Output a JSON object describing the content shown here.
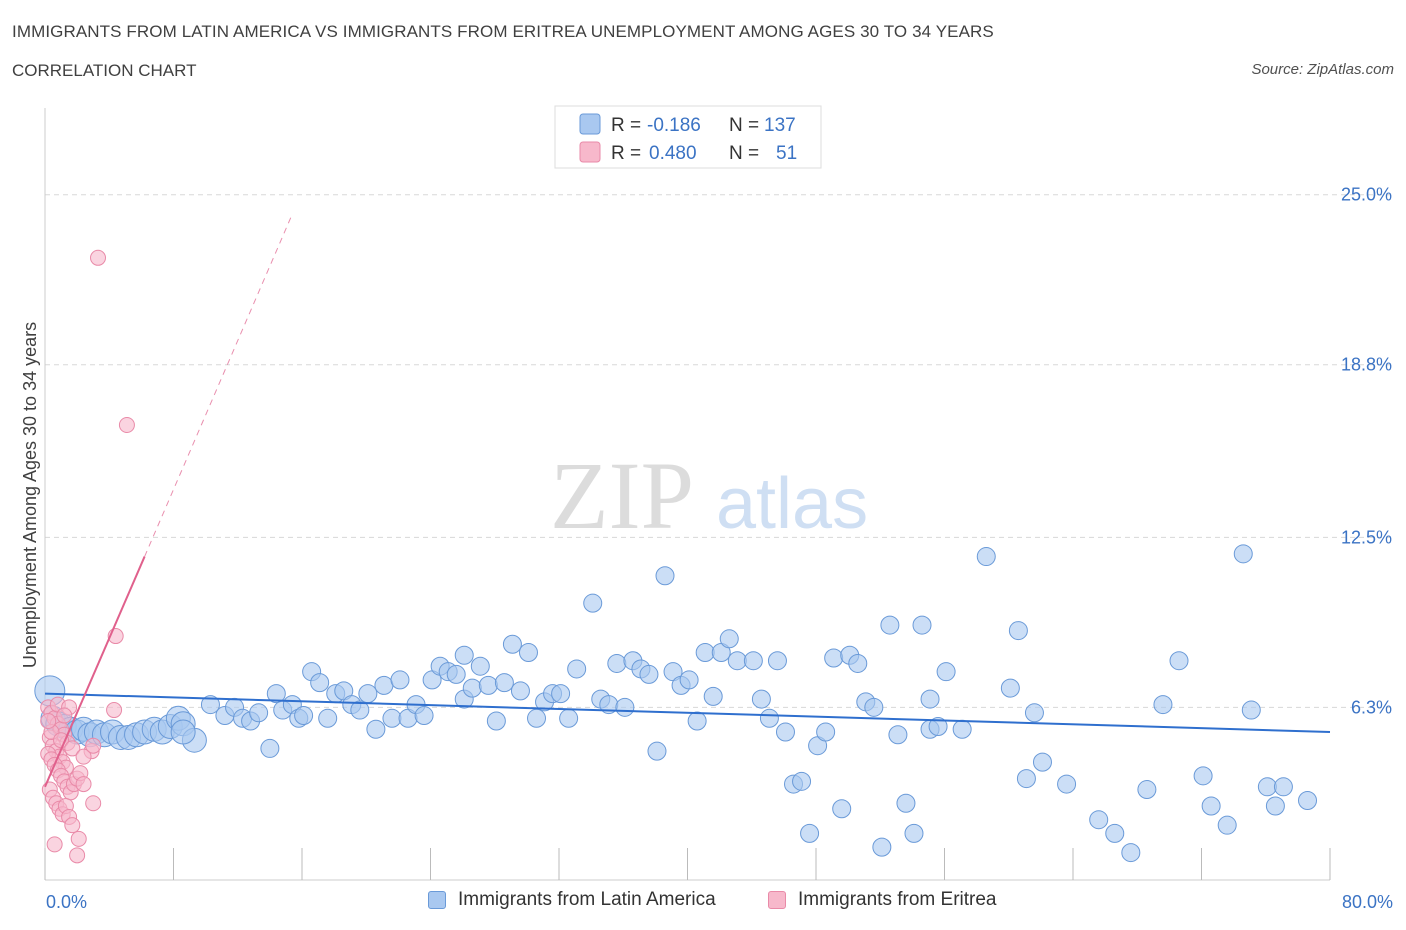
{
  "header": {
    "title": "IMMIGRANTS FROM LATIN AMERICA VS IMMIGRANTS FROM ERITREA UNEMPLOYMENT AMONG AGES 30 TO 34 YEARS",
    "subtitle": "CORRELATION CHART",
    "source": "Source: ZipAtlas.com"
  },
  "watermark": {
    "zip": "ZIP",
    "atlas": "atlas"
  },
  "legend": {
    "r_label": "R =",
    "n_label": "N =",
    "rows": [
      {
        "r": "-0.186",
        "n": "137"
      },
      {
        "r": "0.480",
        "n": "51"
      }
    ]
  },
  "colors": {
    "blue_fill": "#a9c8f0",
    "blue_stroke": "#6a9ad8",
    "blue_line": "#2f6fce",
    "pink_fill": "#f7b8cb",
    "pink_stroke": "#e98aa8",
    "pink_line": "#e0608c",
    "grid": "#d8d8d8",
    "axis_text": "#3b73c4"
  },
  "chart_data": {
    "type": "scatter",
    "title": "IMMIGRANTS FROM LATIN AMERICA VS IMMIGRANTS FROM ERITREA UNEMPLOYMENT AMONG AGES 30 TO 34 YEARS",
    "xlabel": "",
    "ylabel": "Unemployment Among Ages 30 to 34 years",
    "xlim": [
      0,
      80
    ],
    "ylim": [
      0,
      27.8
    ],
    "x_tick_labels": [
      "0.0%",
      "80.0%"
    ],
    "y_ticks": [
      6.3,
      12.5,
      18.8,
      25.0
    ],
    "y_tick_labels": [
      "6.3%",
      "12.5%",
      "18.8%",
      "25.0%"
    ],
    "grid": true,
    "legend_position": "top-center",
    "series": [
      {
        "name": "Immigrants from Latin America",
        "trend": {
          "x": [
            0,
            80
          ],
          "y": [
            6.8,
            5.4
          ],
          "style": "solid"
        },
        "points": [
          [
            0.3,
            6.9
          ],
          [
            0.5,
            5.9
          ],
          [
            0.8,
            5.7
          ],
          [
            1.2,
            5.6
          ],
          [
            1.6,
            5.5
          ],
          [
            2.0,
            5.4
          ],
          [
            2.4,
            5.5
          ],
          [
            2.8,
            5.3
          ],
          [
            3.2,
            5.4
          ],
          [
            3.7,
            5.3
          ],
          [
            4.2,
            5.4
          ],
          [
            4.7,
            5.2
          ],
          [
            5.2,
            5.2
          ],
          [
            5.7,
            5.3
          ],
          [
            6.2,
            5.4
          ],
          [
            6.8,
            5.5
          ],
          [
            7.3,
            5.4
          ],
          [
            7.8,
            5.6
          ],
          [
            8.3,
            5.9
          ],
          [
            8.6,
            5.7
          ],
          [
            9.3,
            5.1
          ],
          [
            10.3,
            6.4
          ],
          [
            11.2,
            6.0
          ],
          [
            11.8,
            6.3
          ],
          [
            12.3,
            5.9
          ],
          [
            12.8,
            5.8
          ],
          [
            13.3,
            6.1
          ],
          [
            14.0,
            4.8
          ],
          [
            14.4,
            6.8
          ],
          [
            14.8,
            6.2
          ],
          [
            15.4,
            6.4
          ],
          [
            15.8,
            5.9
          ],
          [
            16.1,
            6.0
          ],
          [
            16.6,
            7.6
          ],
          [
            17.1,
            7.2
          ],
          [
            17.6,
            5.9
          ],
          [
            18.1,
            6.8
          ],
          [
            18.6,
            6.9
          ],
          [
            19.1,
            6.4
          ],
          [
            19.6,
            6.2
          ],
          [
            20.1,
            6.8
          ],
          [
            20.6,
            5.5
          ],
          [
            21.1,
            7.1
          ],
          [
            21.6,
            5.9
          ],
          [
            22.1,
            7.3
          ],
          [
            22.6,
            5.9
          ],
          [
            23.1,
            6.4
          ],
          [
            23.6,
            6.0
          ],
          [
            24.1,
            7.3
          ],
          [
            24.6,
            7.8
          ],
          [
            25.1,
            7.6
          ],
          [
            25.6,
            7.5
          ],
          [
            26.1,
            6.6
          ],
          [
            26.6,
            7.0
          ],
          [
            27.1,
            7.8
          ],
          [
            27.6,
            7.1
          ],
          [
            28.1,
            5.8
          ],
          [
            28.6,
            7.2
          ],
          [
            29.1,
            8.6
          ],
          [
            29.6,
            6.9
          ],
          [
            30.1,
            8.3
          ],
          [
            30.6,
            5.9
          ],
          [
            31.1,
            6.5
          ],
          [
            31.6,
            6.8
          ],
          [
            32.1,
            6.8
          ],
          [
            32.6,
            5.9
          ],
          [
            33.1,
            7.7
          ],
          [
            34.1,
            10.1
          ],
          [
            34.6,
            6.6
          ],
          [
            35.1,
            6.4
          ],
          [
            35.6,
            7.9
          ],
          [
            36.1,
            6.3
          ],
          [
            36.6,
            8.0
          ],
          [
            37.1,
            7.7
          ],
          [
            37.6,
            7.5
          ],
          [
            38.1,
            4.7
          ],
          [
            38.6,
            11.1
          ],
          [
            39.1,
            7.6
          ],
          [
            39.6,
            7.1
          ],
          [
            40.1,
            7.3
          ],
          [
            40.6,
            5.8
          ],
          [
            41.1,
            8.3
          ],
          [
            41.6,
            6.7
          ],
          [
            42.1,
            8.3
          ],
          [
            42.6,
            8.8
          ],
          [
            43.1,
            8.0
          ],
          [
            44.1,
            8.0
          ],
          [
            44.6,
            6.6
          ],
          [
            45.1,
            5.9
          ],
          [
            45.6,
            8.0
          ],
          [
            46.1,
            5.4
          ],
          [
            46.6,
            3.5
          ],
          [
            47.1,
            3.6
          ],
          [
            47.6,
            1.7
          ],
          [
            48.1,
            4.9
          ],
          [
            48.6,
            5.4
          ],
          [
            49.1,
            8.1
          ],
          [
            49.6,
            2.6
          ],
          [
            50.1,
            8.2
          ],
          [
            50.6,
            7.9
          ],
          [
            51.1,
            6.5
          ],
          [
            51.6,
            6.3
          ],
          [
            52.1,
            1.2
          ],
          [
            52.6,
            9.3
          ],
          [
            53.1,
            5.3
          ],
          [
            53.6,
            2.8
          ],
          [
            54.1,
            1.7
          ],
          [
            54.6,
            9.3
          ],
          [
            55.1,
            5.5
          ],
          [
            55.6,
            5.6
          ],
          [
            56.1,
            7.6
          ],
          [
            57.1,
            5.5
          ],
          [
            58.6,
            11.8
          ],
          [
            60.1,
            7.0
          ],
          [
            61.1,
            3.7
          ],
          [
            61.6,
            6.1
          ],
          [
            62.1,
            4.3
          ],
          [
            63.6,
            3.5
          ],
          [
            65.6,
            2.2
          ],
          [
            66.6,
            1.7
          ],
          [
            67.6,
            1.0
          ],
          [
            68.6,
            3.3
          ],
          [
            69.6,
            6.4
          ],
          [
            70.6,
            8.0
          ],
          [
            72.1,
            3.8
          ],
          [
            72.6,
            2.7
          ],
          [
            73.6,
            2.0
          ],
          [
            74.6,
            11.9
          ],
          [
            75.1,
            6.2
          ],
          [
            76.1,
            3.4
          ],
          [
            76.6,
            2.7
          ],
          [
            77.1,
            3.4
          ],
          [
            78.6,
            2.9
          ],
          [
            8.6,
            5.4
          ],
          [
            26.1,
            8.2
          ],
          [
            60.6,
            9.1
          ],
          [
            55.1,
            6.6
          ]
        ]
      },
      {
        "name": "Immigrants from Eritrea",
        "trend": {
          "x": [
            0,
            6.2
          ],
          "y": [
            3.4,
            11.8
          ],
          "style": "solid",
          "extension": {
            "x": [
              6.2,
              15.4
            ],
            "y": [
              11.8,
              24.3
            ],
            "style": "dashed"
          }
        },
        "points": [
          [
            3.3,
            22.7
          ],
          [
            5.1,
            16.6
          ],
          [
            4.4,
            8.9
          ],
          [
            0.2,
            6.3
          ],
          [
            0.4,
            6.1
          ],
          [
            0.6,
            5.9
          ],
          [
            0.8,
            5.7
          ],
          [
            1.0,
            5.5
          ],
          [
            1.2,
            5.3
          ],
          [
            1.4,
            5.0
          ],
          [
            0.3,
            5.2
          ],
          [
            0.5,
            4.9
          ],
          [
            0.7,
            4.7
          ],
          [
            0.9,
            4.5
          ],
          [
            1.1,
            4.3
          ],
          [
            1.3,
            4.1
          ],
          [
            0.2,
            4.6
          ],
          [
            0.4,
            4.4
          ],
          [
            0.6,
            4.2
          ],
          [
            0.8,
            4.0
          ],
          [
            1.0,
            3.8
          ],
          [
            1.2,
            3.6
          ],
          [
            1.4,
            3.4
          ],
          [
            1.6,
            3.2
          ],
          [
            1.8,
            3.5
          ],
          [
            2.0,
            3.7
          ],
          [
            2.2,
            3.9
          ],
          [
            0.3,
            3.3
          ],
          [
            0.5,
            3.0
          ],
          [
            0.7,
            2.8
          ],
          [
            0.9,
            2.6
          ],
          [
            1.1,
            2.4
          ],
          [
            1.3,
            2.7
          ],
          [
            1.5,
            2.3
          ],
          [
            1.7,
            2.0
          ],
          [
            2.1,
            1.5
          ],
          [
            0.6,
            1.3
          ],
          [
            2.0,
            0.9
          ],
          [
            3.0,
            2.8
          ],
          [
            2.4,
            3.5
          ],
          [
            0.8,
            6.4
          ],
          [
            1.5,
            6.3
          ],
          [
            4.3,
            6.2
          ],
          [
            2.9,
            4.7
          ],
          [
            0.4,
            5.4
          ],
          [
            1.0,
            5.1
          ],
          [
            1.7,
            4.8
          ],
          [
            2.4,
            4.5
          ],
          [
            0.2,
            5.8
          ],
          [
            1.2,
            6.0
          ],
          [
            3.0,
            4.9
          ]
        ]
      }
    ]
  },
  "bottom_legend": {
    "items": [
      {
        "label": "Immigrants from Latin America"
      },
      {
        "label": "Immigrants from Eritrea"
      }
    ]
  }
}
